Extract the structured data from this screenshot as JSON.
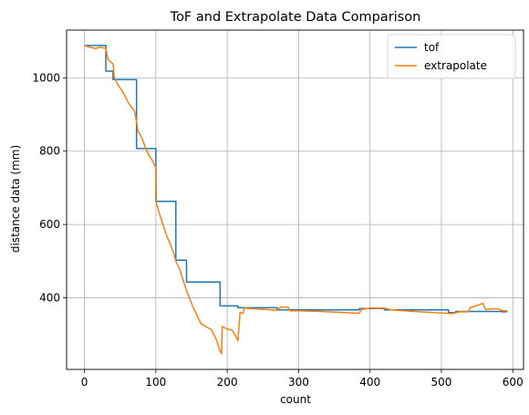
{
  "chart_data": {
    "type": "line",
    "title": "ToF and Extrapolate Data Comparison",
    "xlabel": "count",
    "ylabel": "distance data (mm)",
    "xlim": [
      -25,
      615
    ],
    "ylim": [
      205,
      1130
    ],
    "xticks": [
      0,
      100,
      200,
      300,
      400,
      500,
      600
    ],
    "yticks": [
      400,
      600,
      800,
      1000
    ],
    "grid": true,
    "legend_position": "upper right",
    "series": [
      {
        "name": "tof",
        "color": "#1f77b4",
        "points": [
          [
            0,
            1088
          ],
          [
            30,
            1088
          ],
          [
            30,
            1018
          ],
          [
            40,
            1018
          ],
          [
            40,
            995
          ],
          [
            73,
            995
          ],
          [
            73,
            807
          ],
          [
            100,
            807
          ],
          [
            100,
            663
          ],
          [
            128,
            663
          ],
          [
            128,
            503
          ],
          [
            143,
            503
          ],
          [
            143,
            443
          ],
          [
            190,
            443
          ],
          [
            190,
            378
          ],
          [
            215,
            378
          ],
          [
            215,
            373
          ],
          [
            270,
            373
          ],
          [
            270,
            367
          ],
          [
            385,
            367
          ],
          [
            385,
            371
          ],
          [
            420,
            371
          ],
          [
            420,
            367
          ],
          [
            510,
            367
          ],
          [
            510,
            360
          ],
          [
            520,
            360
          ],
          [
            520,
            363
          ],
          [
            585,
            363
          ],
          [
            585,
            362
          ],
          [
            592,
            362
          ]
        ]
      },
      {
        "name": "extrapolate",
        "color": "#ff7f0e",
        "points": [
          [
            0,
            1088
          ],
          [
            5,
            1085
          ],
          [
            15,
            1080
          ],
          [
            22,
            1083
          ],
          [
            30,
            1080
          ],
          [
            33,
            1050
          ],
          [
            40,
            1038
          ],
          [
            42,
            1000
          ],
          [
            48,
            978
          ],
          [
            55,
            958
          ],
          [
            62,
            930
          ],
          [
            70,
            910
          ],
          [
            73,
            880
          ],
          [
            75,
            855
          ],
          [
            80,
            838
          ],
          [
            85,
            812
          ],
          [
            90,
            790
          ],
          [
            95,
            775
          ],
          [
            100,
            755
          ],
          [
            101,
            655
          ],
          [
            105,
            630
          ],
          [
            110,
            600
          ],
          [
            115,
            570
          ],
          [
            120,
            548
          ],
          [
            125,
            522
          ],
          [
            128,
            500
          ],
          [
            133,
            480
          ],
          [
            138,
            450
          ],
          [
            143,
            420
          ],
          [
            148,
            395
          ],
          [
            152,
            375
          ],
          [
            157,
            355
          ],
          [
            163,
            330
          ],
          [
            170,
            322
          ],
          [
            178,
            313
          ],
          [
            185,
            285
          ],
          [
            190,
            255
          ],
          [
            192,
            248
          ],
          [
            193,
            322
          ],
          [
            200,
            315
          ],
          [
            207,
            312
          ],
          [
            212,
            295
          ],
          [
            215,
            283
          ],
          [
            218,
            360
          ],
          [
            222,
            358
          ],
          [
            224,
            372
          ],
          [
            240,
            370
          ],
          [
            270,
            366
          ],
          [
            275,
            375
          ],
          [
            285,
            375
          ],
          [
            288,
            365
          ],
          [
            300,
            365
          ],
          [
            320,
            364
          ],
          [
            385,
            358
          ],
          [
            388,
            368
          ],
          [
            400,
            372
          ],
          [
            420,
            372
          ],
          [
            430,
            367
          ],
          [
            470,
            362
          ],
          [
            515,
            357
          ],
          [
            525,
            362
          ],
          [
            538,
            362
          ],
          [
            540,
            373
          ],
          [
            548,
            378
          ],
          [
            558,
            385
          ],
          [
            562,
            368
          ],
          [
            570,
            370
          ],
          [
            580,
            370
          ],
          [
            585,
            365
          ],
          [
            593,
            365
          ]
        ]
      }
    ]
  }
}
